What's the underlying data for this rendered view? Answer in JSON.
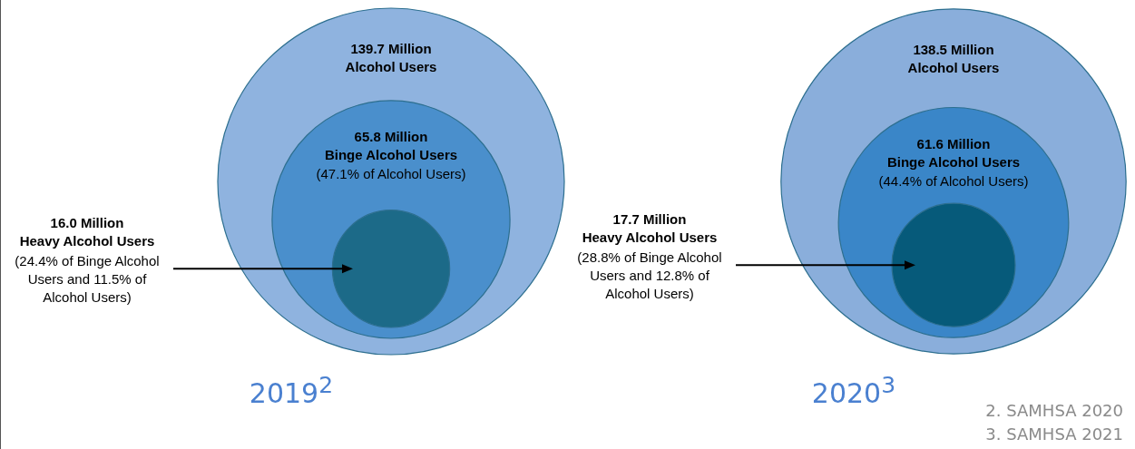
{
  "chart_data": [
    {
      "type": "other",
      "title": "2019$^{2}$",
      "categories": [
        "Alcohol Users",
        "Binge Alcohol Users",
        "Heavy Alcohol Users"
      ],
      "values": [
        139.7,
        65.8,
        16.0
      ],
      "value_labels": [
        "139.7 Million",
        "65.8 Million",
        "16.0 Million"
      ],
      "colors": [
        "#8fb3df",
        "#4a8fcc",
        "#1c6a88"
      ],
      "annotations": [
        "(47.1% of Alcohol Users)",
        "(24.4% of Binge Alcohol Users and 11.5% of Alcohol Users)"
      ]
    },
    {
      "type": "other",
      "title": "2020$^{3}$",
      "categories": [
        "Alcohol Users",
        "Binge Alcohol Users",
        "Heavy Alcohol Users"
      ],
      "values": [
        138.5,
        61.6,
        17.7
      ],
      "value_labels": [
        "138.5 Million",
        "61.6 Million",
        "17.7 Million"
      ],
      "colors": [
        "#8aaedb",
        "#3a86c8",
        "#065a7a"
      ],
      "annotations": [
        "(44.4% of Alcohol Users)",
        "(28.8% of Binge Alcohol Users and 12.8% of Alcohol Users)",
        "2. SAMHSA 2020",
        "3. SAMHSA 2021"
      ]
    }
  ]
}
